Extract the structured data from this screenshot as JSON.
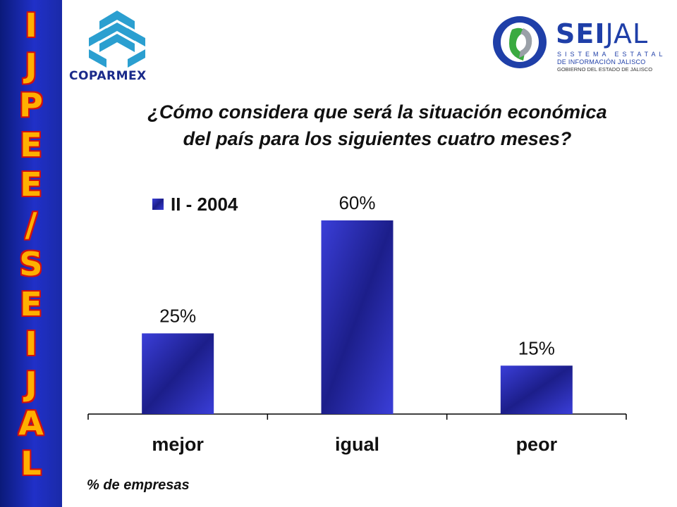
{
  "sidebar": {
    "letters": [
      "I",
      "J",
      "P",
      "E",
      "E",
      "/",
      "S",
      "E",
      "I",
      "J",
      "A",
      "L"
    ]
  },
  "logos": {
    "left": {
      "name": "COPARMEX"
    },
    "right": {
      "name_bold": "SEI",
      "name_regular": "JAL",
      "line1": "SISTEMA ESTATAL",
      "line2": "DE INFORMACIÓN JALISCO",
      "line3": "GOBIERNO DEL ESTADO DE JALISCO"
    }
  },
  "title_line1": "¿Cómo considera que será la situación económica",
  "title_line2": "del país para los siguientes cuatro meses?",
  "footnote": "% de empresas",
  "chart_data": {
    "type": "bar",
    "categories": [
      "mejor",
      "igual",
      "peor"
    ],
    "series": [
      {
        "name": "II - 2004",
        "values": [
          25,
          60,
          15
        ]
      }
    ],
    "value_labels": [
      "25%",
      "60%",
      "15%"
    ],
    "ylim": [
      0,
      60
    ],
    "legend_position": "top-left",
    "grid": false,
    "bar_color": "#2a2eb8"
  }
}
